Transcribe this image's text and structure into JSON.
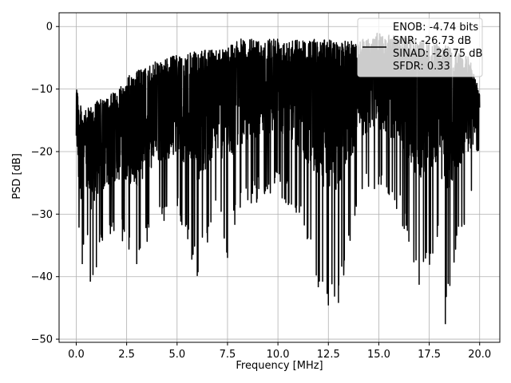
{
  "chart_data": {
    "type": "line",
    "title": "",
    "xlabel": "Frequency [MHz]",
    "ylabel": "PSD [dB]",
    "xlim": [
      -0.85,
      21.0
    ],
    "ylim": [
      -50.5,
      2.2
    ],
    "xticks": [
      0.0,
      2.5,
      5.0,
      7.5,
      10.0,
      12.5,
      15.0,
      17.5,
      20.0
    ],
    "xtick_labels": [
      "0.0",
      "2.5",
      "5.0",
      "7.5",
      "10.0",
      "12.5",
      "15.0",
      "17.5",
      "20.0"
    ],
    "yticks": [
      0,
      -10,
      -20,
      -30,
      -40,
      -50
    ],
    "ytick_labels": [
      "0",
      "−10",
      "−20",
      "−30",
      "−40",
      "−50"
    ],
    "grid": true,
    "legend_position": "top-right",
    "line_color": "#000000",
    "series": [
      {
        "name": "",
        "description": "dense noisy PSD trace (approx. envelope)",
        "x": [
          0.0,
          0.05,
          0.1,
          0.3,
          0.5,
          0.7,
          1.0,
          1.5,
          2.0,
          2.5,
          3.0,
          3.5,
          4.0,
          5.0,
          6.0,
          7.0,
          7.5,
          8.0,
          9.0,
          10.0,
          11.0,
          12.0,
          12.5,
          13.0,
          14.0,
          15.0,
          16.0,
          17.0,
          18.0,
          18.3,
          19.0,
          19.5,
          20.0
        ],
        "upper": [
          -7,
          -6.2,
          -12,
          -13,
          -13.5,
          -12.5,
          -11.8,
          -11.5,
          -10,
          -8,
          -7,
          -6.5,
          -5.5,
          -4.5,
          -4,
          -3.5,
          -3,
          -2,
          -2,
          -1.5,
          -2,
          -2,
          -2,
          -2.5,
          -2,
          -1,
          -1.5,
          -2,
          -3,
          -3,
          -4,
          -5,
          -10
        ],
        "lower": [
          -28,
          -30,
          -33,
          -38,
          -34,
          -40.8,
          -38.5,
          -34,
          -33,
          -36,
          -38,
          -35,
          -33,
          -30,
          -39.9,
          -30,
          -37,
          -30,
          -28,
          -27,
          -30,
          -41.7,
          -44.6,
          -44.2,
          -28,
          -26,
          -30,
          -41.3,
          -35,
          -47.6,
          -34,
          -30,
          -24
        ]
      }
    ],
    "legend_entries": [
      "ENOB: -4.74 bits",
      "SNR: -26.73 dB",
      "SINAD: -26.75 dB",
      "SFDR: 0.33"
    ]
  }
}
